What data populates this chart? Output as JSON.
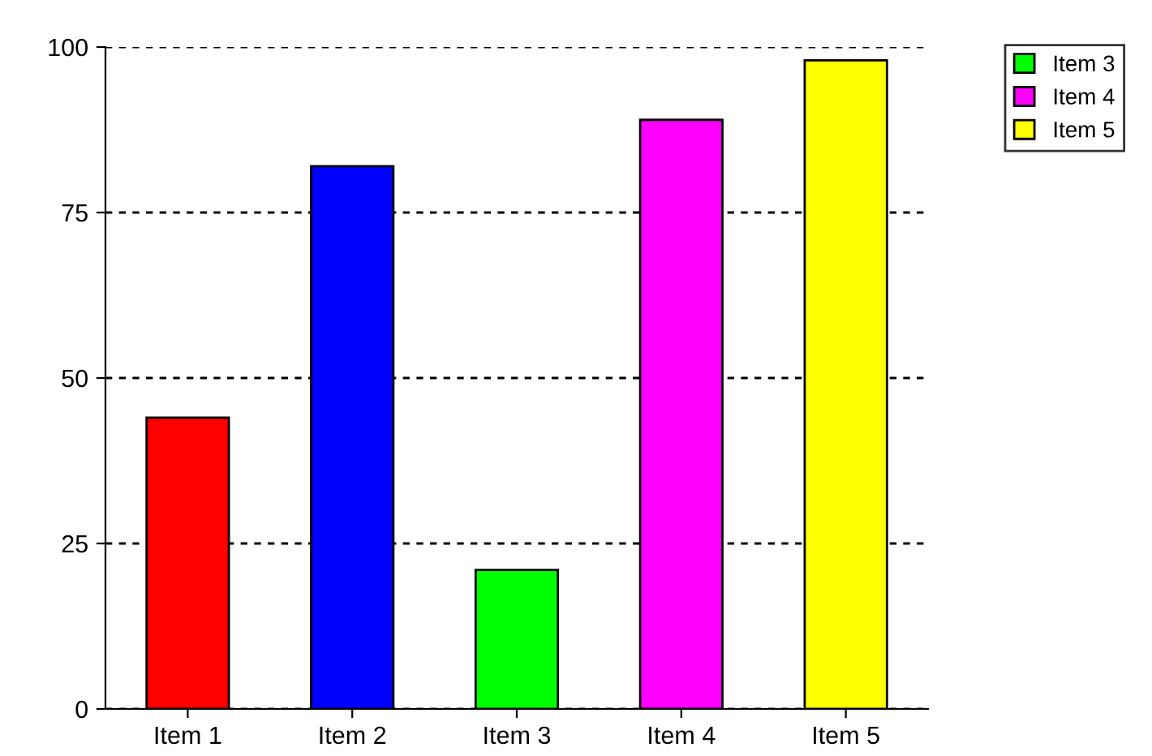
{
  "chart_data": {
    "type": "bar",
    "categories": [
      "Item 1",
      "Item 2",
      "Item 3",
      "Item 4",
      "Item 5"
    ],
    "series": [
      {
        "color": "#ff0000",
        "values": [
          44,
          null,
          null,
          null,
          null
        ]
      },
      {
        "color": "#0000ff",
        "values": [
          null,
          82,
          null,
          null,
          null
        ]
      },
      {
        "name": "Item 3",
        "color": "#00ff00",
        "values": [
          null,
          null,
          21,
          null,
          null
        ]
      },
      {
        "name": "Item 4",
        "color": "#ff00ff",
        "values": [
          null,
          null,
          null,
          89,
          null
        ]
      },
      {
        "name": "Item 5",
        "color": "#ffff00",
        "values": [
          null,
          null,
          null,
          null,
          98
        ]
      }
    ],
    "ylim": [
      0,
      100
    ],
    "yticks": [
      0,
      25,
      50,
      75,
      100
    ],
    "grid": "y",
    "legend": "top right"
  }
}
